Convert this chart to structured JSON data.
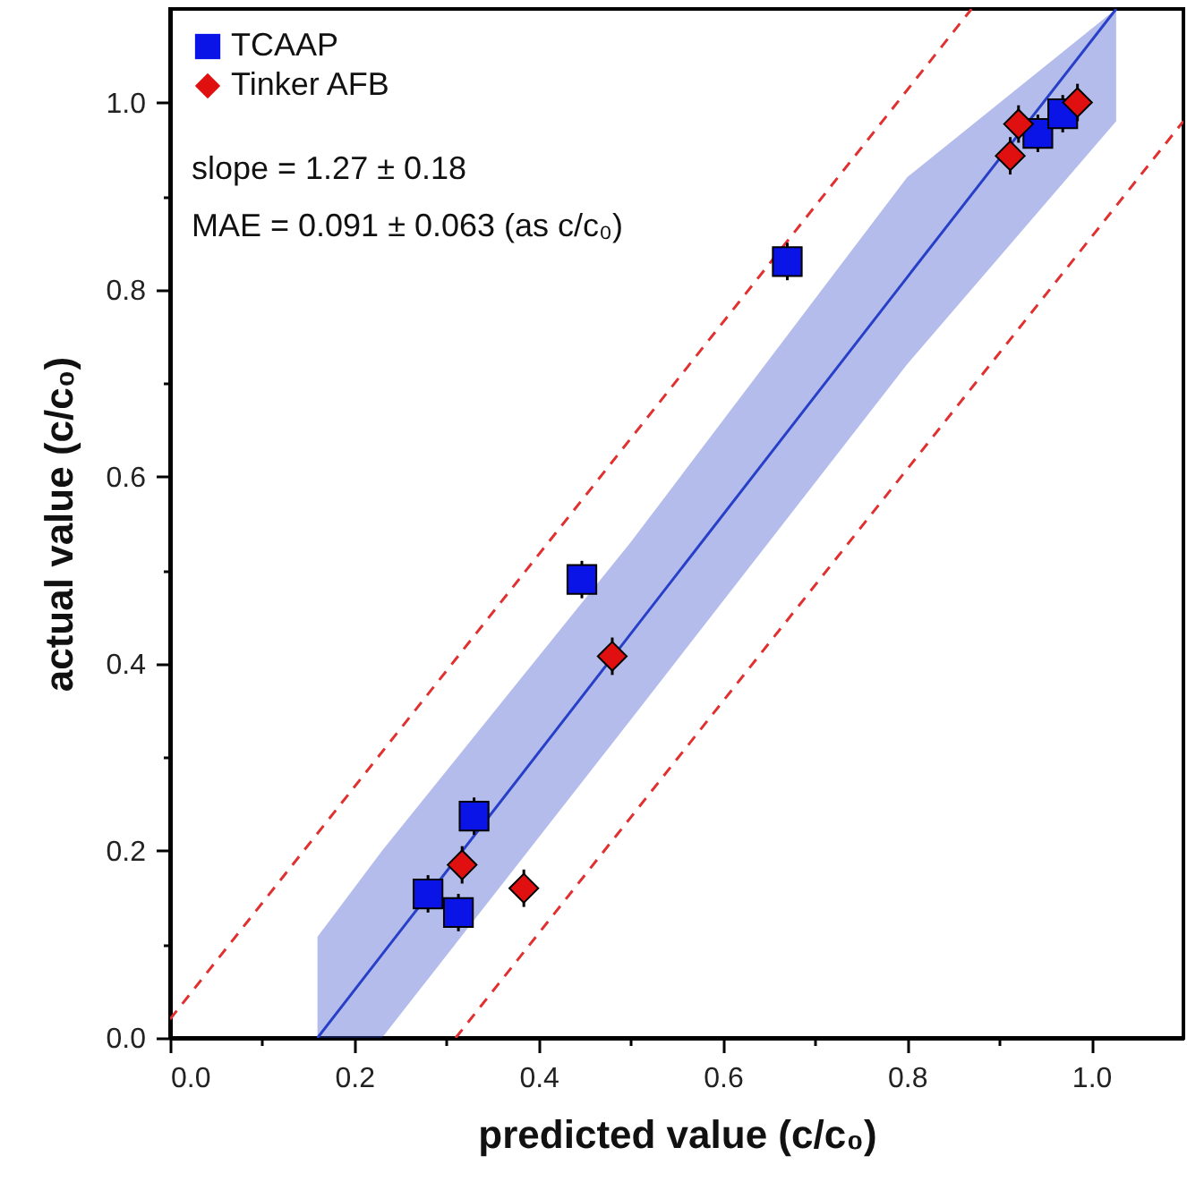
{
  "chart_data": {
    "type": "scatter",
    "xlabel": "predicted value (c/c₀)",
    "ylabel": "actual value (c/c₀)",
    "annotations": [
      "slope = 1.27 ± 0.18",
      "MAE = 0.091 ± 0.063 (as c/c₀)"
    ],
    "xlim": [
      0,
      1.1
    ],
    "ylim": [
      0,
      1.1
    ],
    "xticks": [
      {
        "value": 0,
        "label": "0.0"
      },
      {
        "value": 0.1,
        "label": null
      },
      0.2,
      {
        "value": 0.3,
        "label": null
      },
      0.4,
      {
        "value": 0.5,
        "label": null
      },
      0.6,
      {
        "value": 0.7,
        "label": null
      },
      0.8,
      {
        "value": 0.9,
        "label": null
      },
      {
        "value": 1,
        "label": "1.0"
      }
    ],
    "yticks": [
      {
        "value": 0,
        "label": "0.0"
      },
      {
        "value": 0.1,
        "label": null
      },
      0.2,
      {
        "value": 0.3,
        "label": null
      },
      0.4,
      {
        "value": 0.5,
        "label": null
      },
      0.6,
      {
        "value": 0.7,
        "label": null
      },
      0.8,
      {
        "value": 0.9,
        "label": null
      },
      {
        "value": 1,
        "label": "1.0"
      }
    ],
    "legend": "top left",
    "grid": false,
    "series": [
      {
        "name": "TCAAP",
        "marker": "square",
        "color": "#0a14e6",
        "x": [
          0.67,
          0.447,
          0.33,
          0.28,
          0.313,
          0.942,
          0.969
        ],
        "values": [
          0.83,
          0.49,
          0.237,
          0.154,
          0.134,
          0.967,
          0.988
        ],
        "errors": [
          0.02,
          0.02,
          0.02,
          0.02,
          0.02,
          0.02,
          0.02
        ]
      },
      {
        "name": "Tinker AFB",
        "marker": "diamond",
        "color": "#e01010",
        "x": [
          0.985,
          0.921,
          0.912,
          0.48,
          0.317,
          0.384
        ],
        "values": [
          1.0,
          0.977,
          0.943,
          0.408,
          0.185,
          0.16
        ],
        "errors": [
          0.02,
          0.02,
          0.02,
          0.02,
          0.02,
          0.02
        ]
      },
      {
        "type": "line",
        "color": "#2840c8",
        "x": [
          0.16,
          0.23,
          0.5,
          0.8,
          1.027
        ],
        "values": [
          0,
          0.089,
          0.432,
          0.813,
          1.1
        ],
        "lower": [
          0,
          0,
          0.34,
          0.72,
          0.98
        ],
        "upper": [
          0.108,
          0.2,
          0.53,
          0.92,
          1.1
        ]
      },
      {
        "type": "line",
        "line_style": "dashed",
        "color": "#e03030",
        "x": [
          0,
          0.87
        ],
        "values": [
          0.02,
          1.1
        ]
      },
      {
        "type": "line",
        "line_style": "dashed",
        "color": "#e03030",
        "x": [
          0.31,
          1.1
        ],
        "values": [
          0,
          0.98
        ]
      }
    ]
  }
}
